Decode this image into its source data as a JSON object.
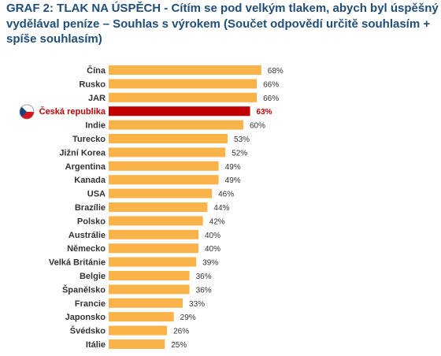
{
  "header": {
    "title_line1": "GRAF 2: TLAK NA ÚSPĚCH - Cítím se pod velkým tlakem, abych byl úspěšný a",
    "title_line2": "vydělával peníze – Souhlas s výrokem (Součet odpovědí určitě souhlasím +",
    "title_line3": "spíše souhlasím)"
  },
  "colors": {
    "bar": "#f9b349",
    "highlight_bar": "#c00000",
    "title": "#1f4e79",
    "label": "#333333"
  },
  "chart_data": {
    "type": "bar",
    "orientation": "horizontal",
    "title": "GRAF 2: TLAK NA ÚSPĚCH - Cítím se pod velkým tlakem, abych byl úspěšný a vydělával peníze – Souhlas s výrokem (Součet odpovědí určitě souhlasím + spíše souhlasím)",
    "categories": [
      "Čína",
      "Rusko",
      "JAR",
      "Česká republika",
      "Indie",
      "Turecko",
      "Jižní Korea",
      "Argentina",
      "Kanada",
      "USA",
      "Brazílie",
      "Polsko",
      "Austrálie",
      "Německo",
      "Velká Británie",
      "Belgie",
      "Španělsko",
      "Francie",
      "Japonsko",
      "Švédsko",
      "Itálie"
    ],
    "values": [
      68,
      66,
      66,
      63,
      60,
      53,
      52,
      49,
      49,
      46,
      44,
      42,
      40,
      40,
      39,
      36,
      36,
      33,
      29,
      26,
      25
    ],
    "value_labels": [
      "68%",
      "66%",
      "66%",
      "63%",
      "60%",
      "53%",
      "52%",
      "49%",
      "49%",
      "46%",
      "44%",
      "42%",
      "40%",
      "40%",
      "39%",
      "36%",
      "36%",
      "33%",
      "29%",
      "26%",
      "25%"
    ],
    "highlight_index": 3,
    "highlight_icon": "czech-flag-icon",
    "unit": "%",
    "xlim": [
      0,
      100
    ],
    "grid": false,
    "legend": "none"
  }
}
